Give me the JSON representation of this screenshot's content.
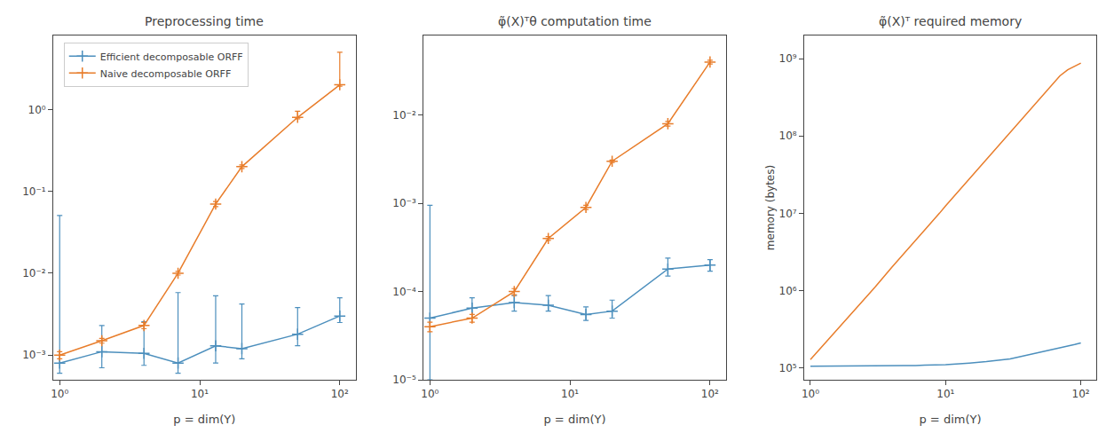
{
  "chart_data": [
    {
      "type": "line",
      "title": "Preprocessing time",
      "x_label": "p = dim(Y)",
      "log": true,
      "grid": false,
      "legend": "upper left",
      "x": [
        1,
        2,
        4,
        7,
        13,
        20,
        50,
        100
      ],
      "xlim": [
        0.9,
        130
      ],
      "xticks": [
        {
          "value": 1,
          "label": "10⁰"
        },
        {
          "value": 10,
          "label": "10¹"
        },
        {
          "value": 100,
          "label": "10²"
        }
      ],
      "ylim": [
        0.0005,
        8
      ],
      "yticks": [
        {
          "value": 0.001,
          "label": "10⁻³"
        },
        {
          "value": 0.01,
          "label": "10⁻²"
        },
        {
          "value": 0.1,
          "label": "10⁻¹"
        },
        {
          "value": 1,
          "label": "10⁰"
        }
      ],
      "series": [
        {
          "name": "Efficient decomposable ORFF",
          "color": "#4C8FBD",
          "marker": "plus",
          "values": [
            0.0008,
            0.0011,
            0.00105,
            0.0008,
            0.0013,
            0.0012,
            0.0018,
            0.003
          ],
          "error_low": [
            0.0002,
            0.0004,
            0.0003,
            0.0002,
            0.0005,
            0.0003,
            0.0005,
            0.0005
          ],
          "error_high": [
            0.05,
            0.0012,
            0.0015,
            0.005,
            0.004,
            0.003,
            0.002,
            0.002
          ]
        },
        {
          "name": "Naive decomposable ORFF",
          "color": "#E87D2B",
          "marker": "plus",
          "values": [
            0.001,
            0.0015,
            0.0023,
            0.01,
            0.07,
            0.2,
            0.8,
            2.0
          ],
          "error_low": [
            0.0001,
            0.0001,
            0.0002,
            0.0005,
            0.005,
            0.01,
            0.03,
            0.08
          ],
          "error_high": [
            0.0001,
            0.0001,
            0.0002,
            0.0005,
            0.005,
            0.01,
            0.15,
            3.0
          ]
        }
      ]
    },
    {
      "type": "line",
      "title": "φ̃(X)ᵀθ computation time",
      "x_label": "p = dim(Y)",
      "log": true,
      "grid": false,
      "x": [
        1,
        2,
        4,
        7,
        13,
        20,
        50,
        100
      ],
      "xlim": [
        0.9,
        130
      ],
      "xticks": [
        {
          "value": 1,
          "label": "10⁰"
        },
        {
          "value": 10,
          "label": "10¹"
        },
        {
          "value": 100,
          "label": "10²"
        }
      ],
      "ylim": [
        1e-05,
        0.08
      ],
      "yticks": [
        {
          "value": 1e-05,
          "label": "10⁻⁵"
        },
        {
          "value": 0.0001,
          "label": "10⁻⁴"
        },
        {
          "value": 0.001,
          "label": "10⁻³"
        },
        {
          "value": 0.01,
          "label": "10⁻²"
        }
      ],
      "series": [
        {
          "color": "#4C8FBD",
          "marker": "plus",
          "values": [
            5e-05,
            6.5e-05,
            7.5e-05,
            7e-05,
            5.5e-05,
            6e-05,
            0.00018,
            0.0002
          ],
          "error_low": [
            4e-05,
            1.5e-05,
            1.5e-05,
            1e-05,
            8e-06,
            1e-05,
            3e-05,
            3e-05
          ],
          "error_high": [
            0.0009,
            2e-05,
            1.5e-05,
            2e-05,
            1.2e-05,
            2e-05,
            6e-05,
            3e-05
          ]
        },
        {
          "color": "#E87D2B",
          "marker": "plus",
          "values": [
            4e-05,
            5e-05,
            0.0001,
            0.0004,
            0.0009,
            0.003,
            0.008,
            0.04
          ],
          "error_low": [
            5e-06,
            5e-06,
            8e-06,
            2e-05,
            5e-05,
            0.0001,
            0.0005,
            0.002
          ],
          "error_high": [
            5e-06,
            5e-06,
            8e-06,
            2e-05,
            5e-05,
            0.0001,
            0.0005,
            0.002
          ]
        }
      ]
    },
    {
      "type": "line",
      "title": "φ̃(X)ᵀ required memory",
      "x_label": "p = dim(Y)",
      "y_label": "memory (bytes)",
      "log": true,
      "grid": false,
      "x": [
        1,
        2,
        3,
        4,
        5,
        6,
        7,
        8,
        9,
        10,
        15,
        20,
        30,
        40,
        50,
        60,
        70,
        80,
        90,
        100
      ],
      "xlim": [
        0.9,
        130
      ],
      "xticks": [
        {
          "value": 1,
          "label": "10⁰"
        },
        {
          "value": 10,
          "label": "10¹"
        },
        {
          "value": 100,
          "label": "10²"
        }
      ],
      "ylim": [
        70000.0,
        2000000000.0
      ],
      "yticks": [
        {
          "value": 100000,
          "label": "10⁵"
        },
        {
          "value": 1000000,
          "label": "10⁶"
        },
        {
          "value": 10000000,
          "label": "10⁷"
        },
        {
          "value": 100000000,
          "label": "10⁸"
        },
        {
          "value": 1000000000,
          "label": "10⁹"
        }
      ],
      "series": [
        {
          "color": "#E87D2B",
          "values": [
            128000.0,
            500000.0,
            1100000.0,
            2000000.0,
            3100000.0,
            4500000.0,
            6000000.0,
            8000000.0,
            10000000.0,
            12500000.0,
            28000000.0,
            50000000.0,
            110000000.0,
            200000000.0,
            310000000.0,
            450000000.0,
            600000000.0,
            720000000.0,
            810000000.0,
            880000000.0
          ]
        },
        {
          "color": "#4C8FBD",
          "values": [
            105000.0,
            105000.0,
            106000.0,
            106000.0,
            107000.0,
            107000.0,
            108000.0,
            108000.0,
            109000.0,
            110000.0,
            115000.0,
            120000.0,
            130000.0,
            145000.0,
            160000.0,
            170000.0,
            180000.0,
            190000.0,
            200000.0,
            210000.0
          ]
        }
      ]
    }
  ]
}
